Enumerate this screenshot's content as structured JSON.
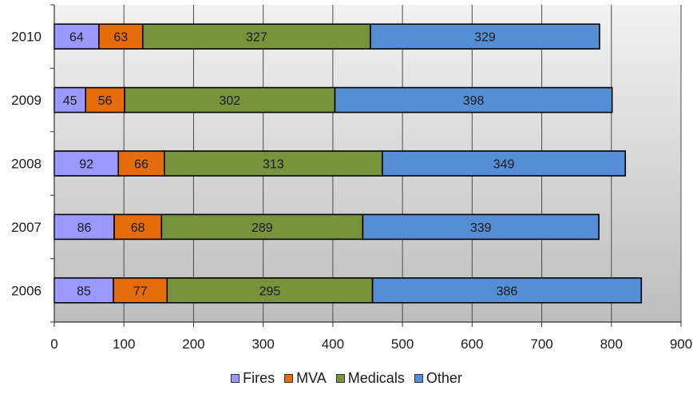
{
  "chart_data": {
    "type": "bar",
    "orientation": "horizontal",
    "stacked": true,
    "categories": [
      "2010",
      "2009",
      "2008",
      "2007",
      "2006"
    ],
    "series": [
      {
        "name": "Fires",
        "color": "#9999ff",
        "values": [
          64,
          45,
          92,
          86,
          85
        ]
      },
      {
        "name": "MVA",
        "color": "#e46c0a",
        "values": [
          63,
          56,
          66,
          68,
          77
        ]
      },
      {
        "name": "Medicals",
        "color": "#77933c",
        "values": [
          327,
          302,
          313,
          289,
          295
        ]
      },
      {
        "name": "Other",
        "color": "#558ed5",
        "values": [
          329,
          398,
          349,
          339,
          386
        ]
      }
    ],
    "xlim": [
      0,
      900
    ],
    "xticks": [
      "0",
      "100",
      "200",
      "300",
      "400",
      "500",
      "600",
      "700",
      "800",
      "900"
    ],
    "grid": true,
    "plot_background": "#c0c0c0",
    "legend_position": "bottom",
    "data_labels": true
  }
}
